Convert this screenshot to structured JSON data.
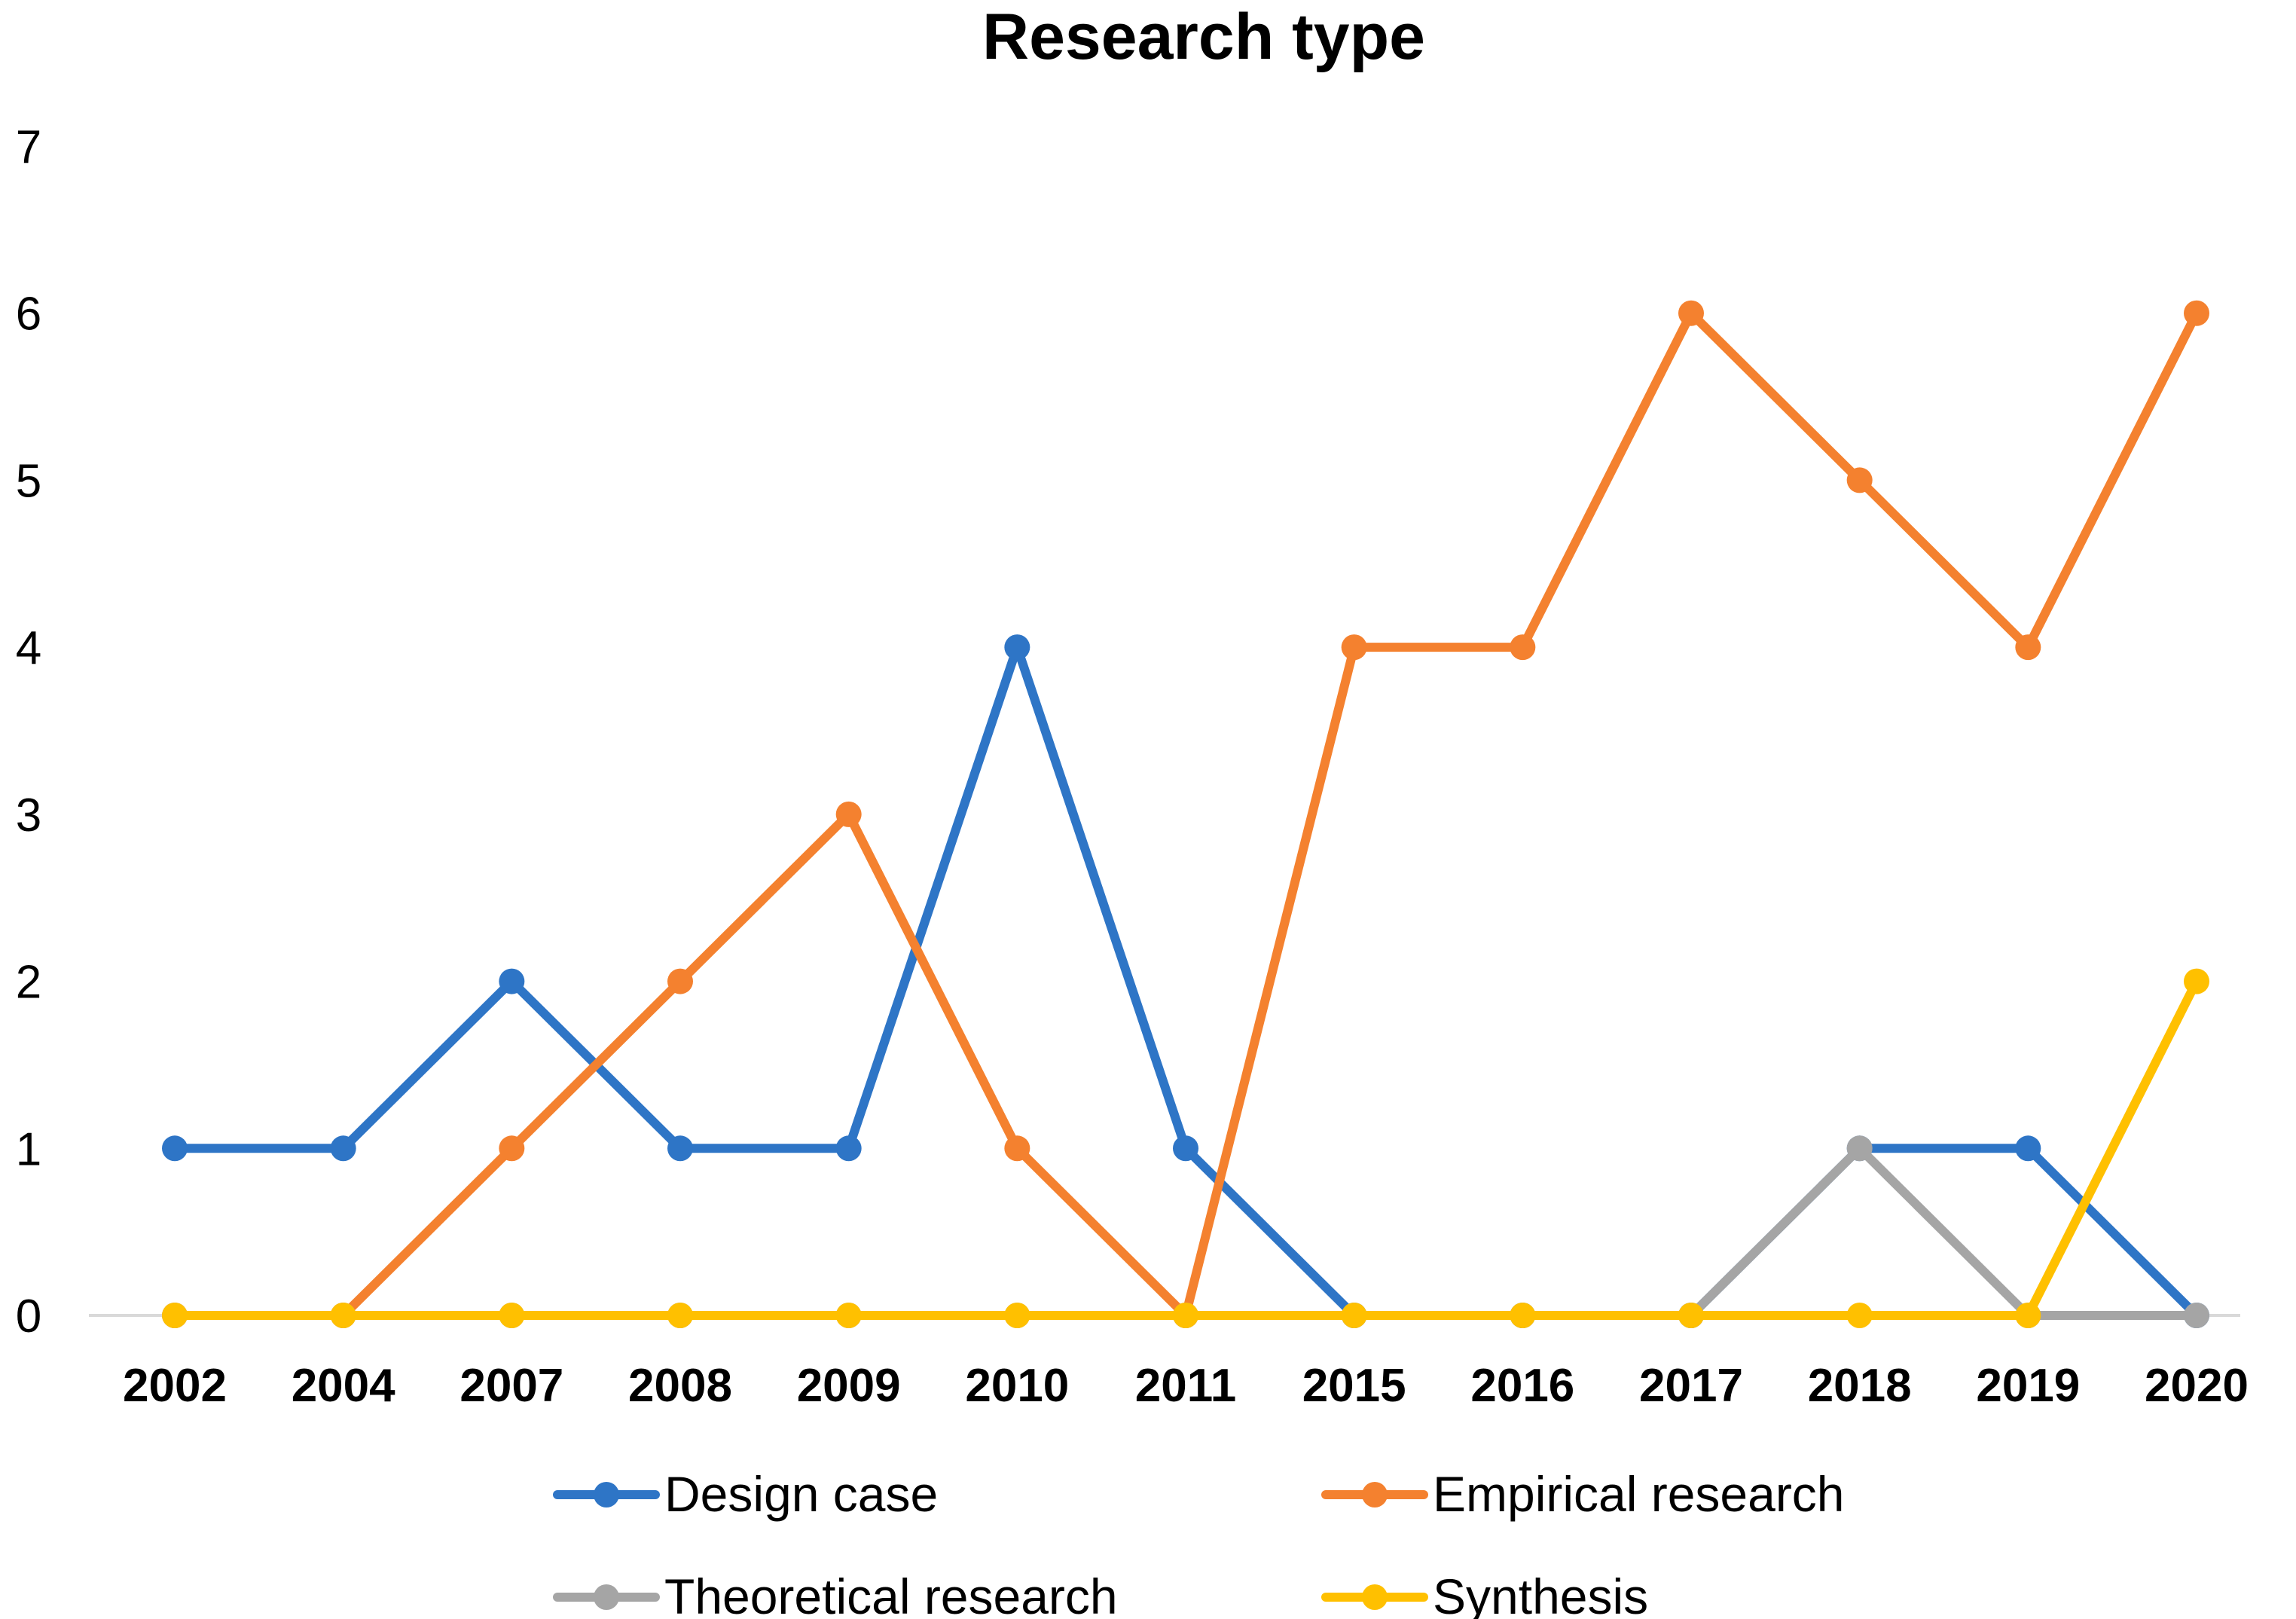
{
  "chart_data": {
    "type": "line",
    "title": "Research type",
    "xlabel": "",
    "ylabel": "",
    "ylim": [
      0,
      7
    ],
    "yticks": [
      "0",
      "1",
      "2",
      "3",
      "4",
      "5",
      "6",
      "7"
    ],
    "grid": false,
    "legend_position": "bottom",
    "categories": [
      "2002",
      "2004",
      "2007",
      "2008",
      "2009",
      "2010",
      "2011",
      "2015",
      "2016",
      "2017",
      "2018",
      "2019",
      "2020"
    ],
    "series": [
      {
        "name": "Design case",
        "color": "#2E75C6",
        "values": [
          1,
          1,
          2,
          1,
          1,
          4,
          1,
          0,
          0,
          0,
          1,
          1,
          0
        ]
      },
      {
        "name": "Empirical research",
        "color": "#F4812F",
        "values": [
          0,
          0,
          1,
          2,
          3,
          1,
          0,
          4,
          4,
          6,
          5,
          4,
          6
        ]
      },
      {
        "name": "Theoretical research",
        "color": "#A5A5A5",
        "values": [
          0,
          0,
          0,
          0,
          0,
          0,
          0,
          0,
          0,
          0,
          1,
          0,
          0
        ]
      },
      {
        "name": "Synthesis",
        "color": "#FFC000",
        "values": [
          0,
          0,
          0,
          0,
          0,
          0,
          0,
          0,
          0,
          0,
          0,
          0,
          2
        ]
      }
    ]
  }
}
